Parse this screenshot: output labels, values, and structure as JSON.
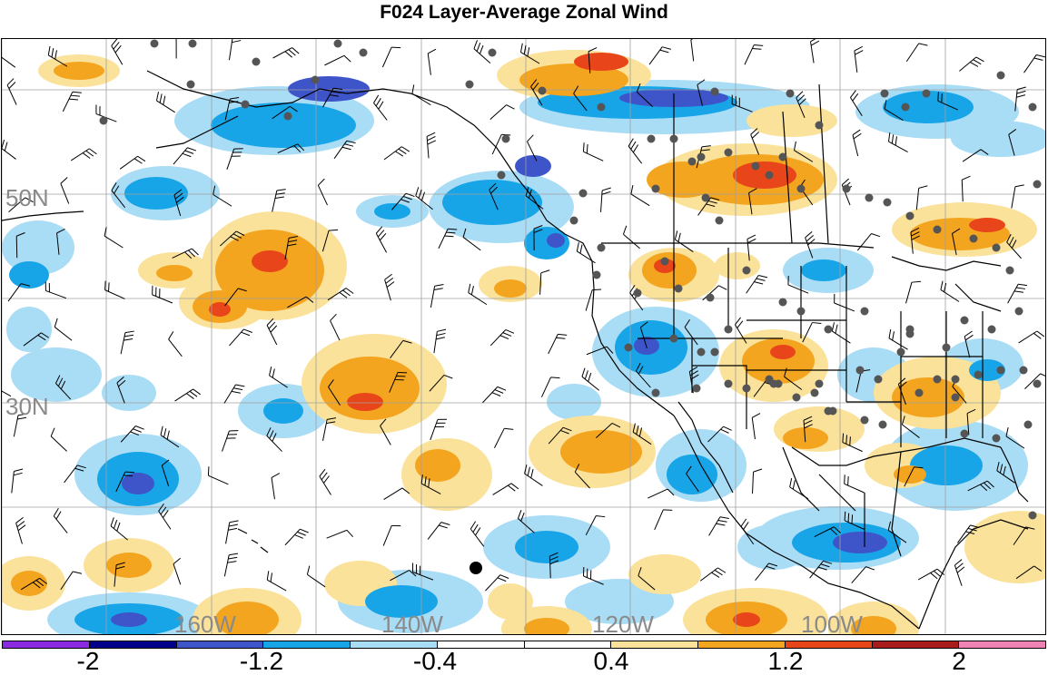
{
  "title": "F024 Layer-Average Zonal Wind",
  "map": {
    "lat_labels": [
      "50N",
      "30N"
    ],
    "lon_labels": [
      "160W",
      "140W",
      "120W",
      "100W"
    ],
    "grid_color": "#a0a0a0",
    "station_marker_color": "#555555",
    "highlight_marker_color": "#000000"
  },
  "colorbar": {
    "colors": [
      "#8a2be2",
      "#00008b",
      "#3e54c9",
      "#17a5e8",
      "#a9dcf5",
      "#ffffff",
      "#ffffff",
      "#fbe29a",
      "#f4a520",
      "#e8461a",
      "#a81c1c",
      "#ee82b4"
    ],
    "labels": [
      "-2",
      "-1.2",
      "-0.4",
      "0.4",
      "1.2",
      "2"
    ]
  },
  "palette": {
    "neg_light": "#a9dcf5",
    "neg_mid": "#17a5e8",
    "neg_strong": "#3e54c9",
    "pos_light": "#fbe29a",
    "pos_mid": "#f4a520",
    "pos_strong": "#e8461a"
  }
}
